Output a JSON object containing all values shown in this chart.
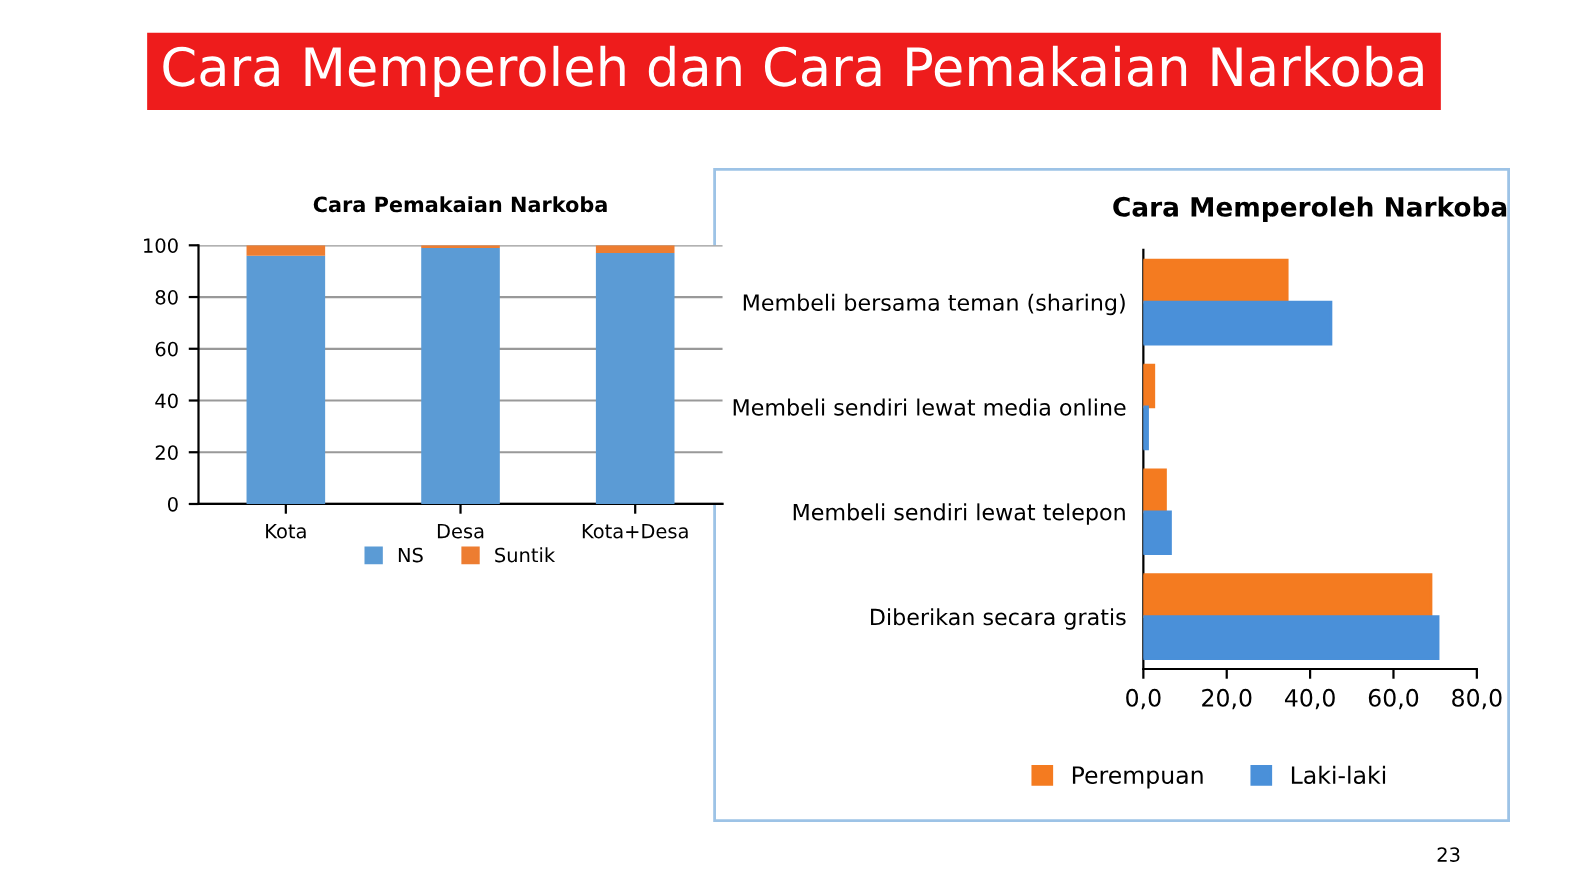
{
  "chart_data": [
    {
      "type": "bar",
      "title": "Cara Pemakaian Narkoba",
      "stacked": true,
      "categories": [
        "Kota",
        "Desa",
        "Kota+Desa"
      ],
      "series": [
        {
          "name": "NS",
          "color": "#5b9bd5",
          "values": [
            96,
            99,
            97
          ]
        },
        {
          "name": "Suntik",
          "color": "#ed7d31",
          "values": [
            4,
            1,
            3
          ]
        }
      ],
      "ylim": [
        0,
        100
      ],
      "yticks": [
        0,
        20,
        40,
        60,
        80,
        100
      ],
      "grid": "y",
      "legend": "bottom",
      "annotations": [
        "Cara Memperoleh dan Cara Pemakaian Narkoba",
        "23"
      ]
    },
    {
      "type": "bar",
      "title": "Cara Memperoleh Narkoba",
      "orientation": "horizontal",
      "categories": [
        "Membeli bersama teman (sharing)",
        "Membeli sendiri lewat media online",
        "Membeli sendiri lewat telepon",
        "Diberikan secara gratis"
      ],
      "series": [
        {
          "name": "Perempuan",
          "color": "#f47b20",
          "values": [
            34.5,
            2.5,
            5.3,
            69
          ]
        },
        {
          "name": "Laki-laki",
          "color": "#4a90d9",
          "values": [
            45,
            1,
            6.5,
            70.7
          ]
        }
      ],
      "xlim": [
        0,
        80
      ],
      "xticks": [
        {
          "value": 0,
          "label": "0,0"
        },
        {
          "value": 20,
          "label": "20,0"
        },
        {
          "value": 40,
          "label": "40,0"
        },
        {
          "value": 60,
          "label": "60,0"
        },
        {
          "value": 80,
          "label": "80,0"
        }
      ],
      "legend": "bottom"
    }
  ]
}
